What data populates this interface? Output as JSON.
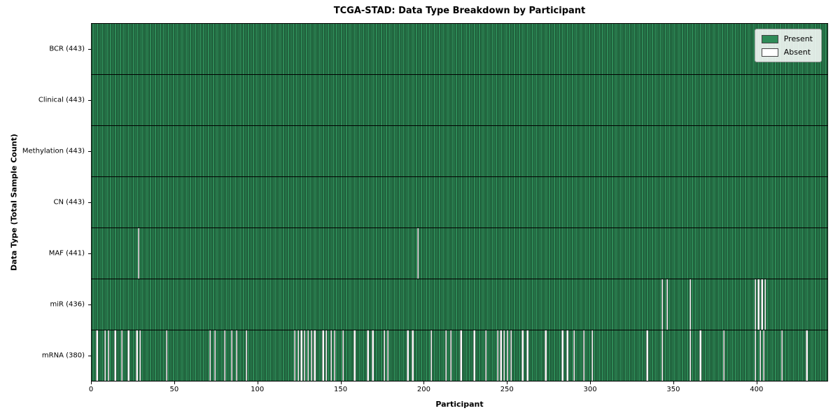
{
  "title": "TCGA-STAD: Data Type Breakdown by Participant",
  "xlabel": "Participant",
  "ylabel": "Data Type (Total Sample Count)",
  "legend": {
    "present": "Present",
    "absent": "Absent"
  },
  "colors": {
    "present": "#2e8b57",
    "absent": "#ffffff",
    "cell_edge": "rgba(0,0,0,0.45)"
  },
  "chart_data": {
    "type": "heatmap",
    "title": "TCGA-STAD: Data Type Breakdown by Participant",
    "xlabel": "Participant",
    "ylabel": "Data Type (Total Sample Count)",
    "n_participants": 443,
    "x_ticks": [
      0,
      50,
      100,
      150,
      200,
      250,
      300,
      350,
      400
    ],
    "legend_position": "upper right",
    "legend_entries": [
      "Present",
      "Absent"
    ],
    "rows": [
      {
        "name": "bcr",
        "label": "BCR (443)",
        "count": 443,
        "absent": []
      },
      {
        "name": "clinical",
        "label": "Clinical (443)",
        "count": 443,
        "absent": []
      },
      {
        "name": "methylation",
        "label": "Methylation (443)",
        "count": 443,
        "absent": []
      },
      {
        "name": "cn",
        "label": "CN (443)",
        "count": 443,
        "absent": []
      },
      {
        "name": "maf",
        "label": "MAF (441)",
        "count": 441,
        "absent": [
          28,
          196
        ]
      },
      {
        "name": "mir",
        "label": "miR (436)",
        "count": 436,
        "absent": [
          343,
          346,
          360,
          399,
          401,
          403,
          405
        ]
      },
      {
        "name": "mrna",
        "label": "mRNA (380)",
        "count": 380,
        "absent": [
          3,
          8,
          10,
          14,
          18,
          22,
          27,
          29,
          45,
          71,
          74,
          80,
          84,
          87,
          93,
          122,
          124,
          126,
          128,
          130,
          132,
          134,
          139,
          141,
          144,
          146,
          151,
          158,
          166,
          169,
          176,
          178,
          190,
          193,
          204,
          213,
          216,
          222,
          230,
          237,
          244,
          246,
          248,
          250,
          252,
          259,
          262,
          273,
          283,
          286,
          290,
          296,
          301,
          334,
          343,
          360,
          366,
          380,
          399,
          402,
          404,
          415,
          430
        ]
      }
    ]
  }
}
